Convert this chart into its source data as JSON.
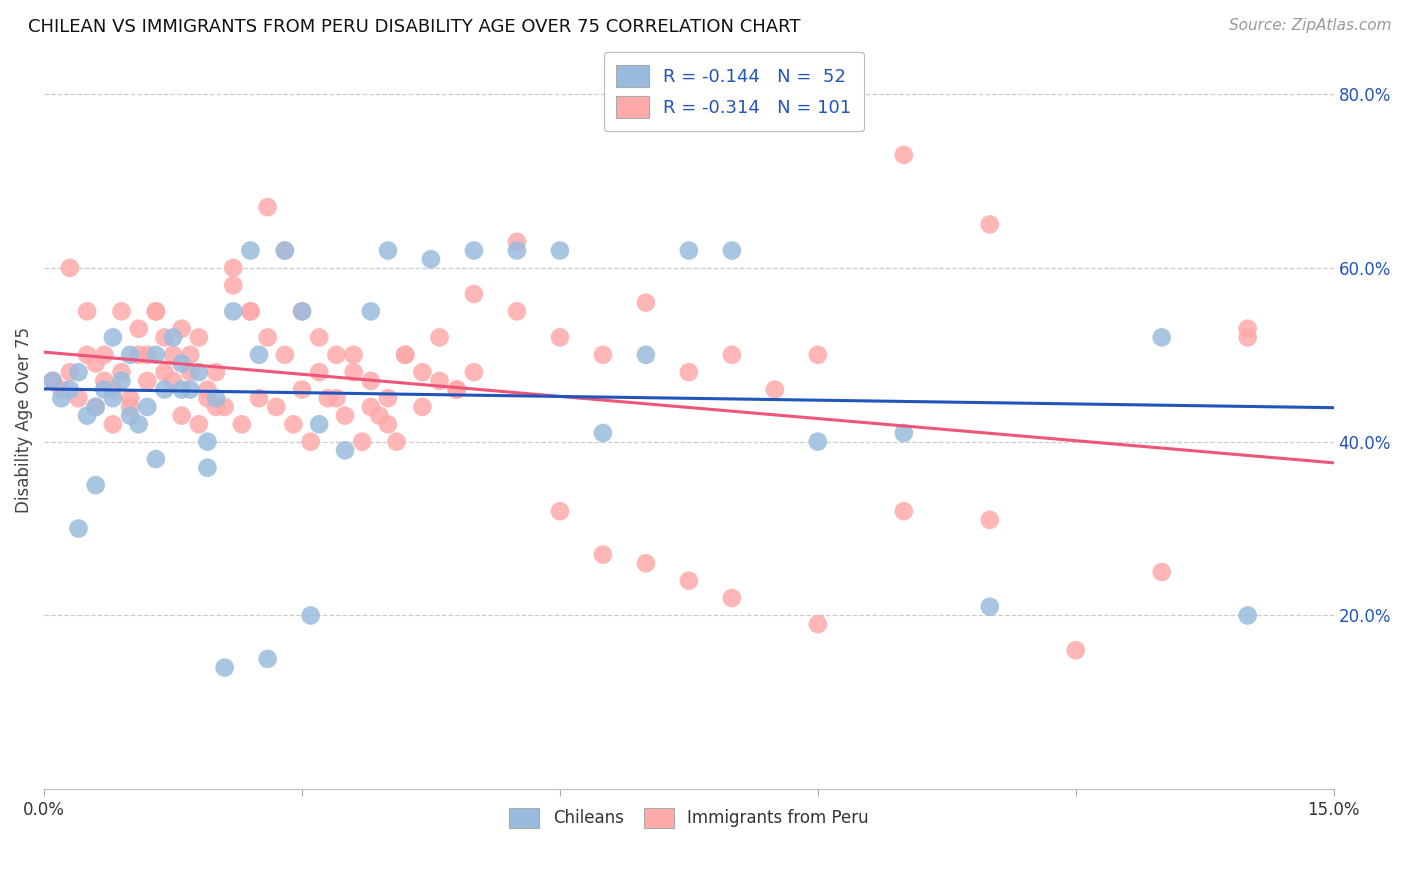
{
  "title": "CHILEAN VS IMMIGRANTS FROM PERU DISABILITY AGE OVER 75 CORRELATION CHART",
  "source": "Source: ZipAtlas.com",
  "ylabel_label": "Disability Age Over 75",
  "x_min": 0.0,
  "x_max": 0.15,
  "y_min": 0.0,
  "y_max": 0.85,
  "y_ticks_right": [
    0.2,
    0.4,
    0.6,
    0.8
  ],
  "y_tick_labels_right": [
    "20.0%",
    "40.0%",
    "60.0%",
    "80.0%"
  ],
  "legend_r_chilean": "-0.144",
  "legend_n_chilean": "52",
  "legend_r_peru": "-0.314",
  "legend_n_peru": "101",
  "color_chilean": "#99BBDD",
  "color_peru": "#FFAAAA",
  "color_line_chilean": "#2255BB",
  "color_line_peru": "#EE5577",
  "background_color": "#FFFFFF",
  "grid_color": "#CCCCCC",
  "chilean_x": [
    0.001,
    0.002,
    0.003,
    0.004,
    0.005,
    0.006,
    0.007,
    0.008,
    0.009,
    0.01,
    0.011,
    0.012,
    0.013,
    0.014,
    0.015,
    0.016,
    0.017,
    0.018,
    0.019,
    0.02,
    0.022,
    0.024,
    0.025,
    0.028,
    0.03,
    0.032,
    0.035,
    0.038,
    0.04,
    0.045,
    0.05,
    0.055,
    0.06,
    0.065,
    0.07,
    0.075,
    0.08,
    0.09,
    0.1,
    0.11,
    0.004,
    0.006,
    0.008,
    0.01,
    0.013,
    0.016,
    0.019,
    0.021,
    0.026,
    0.031,
    0.13,
    0.14
  ],
  "chilean_y": [
    0.47,
    0.45,
    0.46,
    0.48,
    0.43,
    0.44,
    0.46,
    0.45,
    0.47,
    0.43,
    0.42,
    0.44,
    0.5,
    0.46,
    0.52,
    0.49,
    0.46,
    0.48,
    0.37,
    0.45,
    0.55,
    0.62,
    0.5,
    0.62,
    0.55,
    0.42,
    0.39,
    0.55,
    0.62,
    0.61,
    0.62,
    0.62,
    0.62,
    0.41,
    0.5,
    0.62,
    0.62,
    0.4,
    0.41,
    0.21,
    0.3,
    0.35,
    0.52,
    0.5,
    0.38,
    0.46,
    0.4,
    0.14,
    0.15,
    0.2,
    0.52,
    0.2
  ],
  "peru_x": [
    0.001,
    0.002,
    0.003,
    0.004,
    0.005,
    0.006,
    0.007,
    0.008,
    0.009,
    0.01,
    0.011,
    0.012,
    0.013,
    0.014,
    0.015,
    0.016,
    0.017,
    0.018,
    0.019,
    0.02,
    0.022,
    0.024,
    0.026,
    0.028,
    0.03,
    0.032,
    0.034,
    0.036,
    0.038,
    0.04,
    0.042,
    0.044,
    0.046,
    0.048,
    0.05,
    0.055,
    0.06,
    0.065,
    0.07,
    0.075,
    0.08,
    0.085,
    0.09,
    0.1,
    0.11,
    0.12,
    0.13,
    0.14,
    0.006,
    0.008,
    0.01,
    0.012,
    0.014,
    0.016,
    0.018,
    0.02,
    0.022,
    0.024,
    0.026,
    0.028,
    0.03,
    0.032,
    0.034,
    0.036,
    0.038,
    0.04,
    0.042,
    0.044,
    0.046,
    0.048,
    0.05,
    0.055,
    0.06,
    0.065,
    0.07,
    0.075,
    0.08,
    0.09,
    0.1,
    0.11,
    0.003,
    0.005,
    0.007,
    0.009,
    0.011,
    0.013,
    0.015,
    0.017,
    0.019,
    0.021,
    0.023,
    0.025,
    0.027,
    0.029,
    0.031,
    0.033,
    0.035,
    0.037,
    0.039,
    0.041,
    0.14
  ],
  "peru_y": [
    0.47,
    0.46,
    0.48,
    0.45,
    0.5,
    0.49,
    0.47,
    0.46,
    0.48,
    0.45,
    0.53,
    0.5,
    0.55,
    0.52,
    0.5,
    0.53,
    0.48,
    0.52,
    0.46,
    0.48,
    0.58,
    0.55,
    0.52,
    0.5,
    0.46,
    0.48,
    0.45,
    0.5,
    0.47,
    0.45,
    0.5,
    0.48,
    0.52,
    0.46,
    0.48,
    0.55,
    0.52,
    0.5,
    0.56,
    0.48,
    0.5,
    0.46,
    0.5,
    0.32,
    0.31,
    0.16,
    0.25,
    0.52,
    0.44,
    0.42,
    0.44,
    0.47,
    0.48,
    0.43,
    0.42,
    0.44,
    0.6,
    0.55,
    0.67,
    0.62,
    0.55,
    0.52,
    0.5,
    0.48,
    0.44,
    0.42,
    0.5,
    0.44,
    0.47,
    0.46,
    0.57,
    0.63,
    0.32,
    0.27,
    0.26,
    0.24,
    0.22,
    0.19,
    0.73,
    0.65,
    0.6,
    0.55,
    0.5,
    0.55,
    0.5,
    0.55,
    0.47,
    0.5,
    0.45,
    0.44,
    0.42,
    0.45,
    0.44,
    0.42,
    0.4,
    0.45,
    0.43,
    0.4,
    0.43,
    0.4,
    0.53
  ]
}
